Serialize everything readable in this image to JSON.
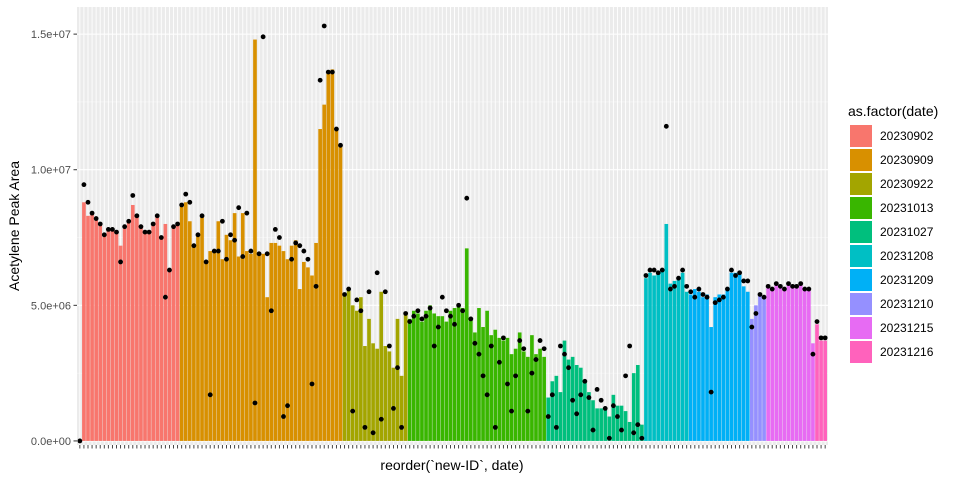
{
  "chart_data": {
    "type": "bar",
    "title": "",
    "xlabel": "reorder(`new-ID`, date)",
    "ylabel": "Acetylene Peak Area",
    "ylim": [
      -150000,
      16000000
    ],
    "yticks": [
      0,
      5000000,
      10000000,
      15000000
    ],
    "ytick_labels": [
      "0.0e+00",
      "5.0e+06",
      "1.0e+07",
      "1.5e+07"
    ],
    "legend": {
      "title": "as.factor(date)",
      "placement": "right",
      "entries": [
        {
          "label": "20230902",
          "color": "#F8766D"
        },
        {
          "label": "20230909",
          "color": "#D89000"
        },
        {
          "label": "20230922",
          "color": "#A3A500"
        },
        {
          "label": "20231013",
          "color": "#39B600"
        },
        {
          "label": "20231027",
          "color": "#00BF7D"
        },
        {
          "label": "20231208",
          "color": "#00BFC4"
        },
        {
          "label": "20231209",
          "color": "#00B0F6"
        },
        {
          "label": "20231210",
          "color": "#9590FF"
        },
        {
          "label": "20231215",
          "color": "#E76BF3"
        },
        {
          "label": "20231216",
          "color": "#FF62BC"
        }
      ]
    },
    "series": [
      {
        "name": "20230902",
        "bar_values": [
          0,
          8800000,
          8300000,
          8400000,
          8200000,
          8000000,
          7600000,
          7800000,
          7800000,
          7700000,
          7200000,
          7900000,
          8100000,
          8700000,
          8300000,
          7900000,
          7700000,
          7700000,
          8000000,
          8300000,
          7500000,
          8000000,
          6300000,
          7900000,
          8000000
        ],
        "points": [
          0,
          9450000,
          8800000,
          8400000,
          8200000,
          8000000,
          7600000,
          7800000,
          7800000,
          7700000,
          6600000,
          7900000,
          8100000,
          9050000,
          8300000,
          7900000,
          7700000,
          7700000,
          8000000,
          8300000,
          7500000,
          5300000,
          6300000,
          7900000,
          8000000
        ]
      },
      {
        "name": "20230909",
        "bar_values": [
          8700000,
          8800000,
          8100000,
          7200000,
          7600000,
          8300000,
          6600000,
          7000000,
          7000000,
          8100000,
          6700000,
          7600000,
          7400000,
          8400000,
          6800000,
          8400000,
          7000000,
          6900000,
          14800000,
          6900000,
          6900000,
          5300000,
          7300000,
          7300000,
          7200000,
          7000000,
          6700000,
          7200000,
          7400000,
          5600000,
          6600000,
          6400000,
          6100000,
          7300000,
          11500000,
          12400000,
          13600000,
          13700000,
          11500000,
          10900000
        ],
        "points": [
          8700000,
          9100000,
          8800000,
          7200000,
          7600000,
          8300000,
          6600000,
          1700000,
          7000000,
          7000000,
          8100000,
          6700000,
          7600000,
          7400000,
          8600000,
          6800000,
          8400000,
          7000000,
          1400000,
          6900000,
          14900000,
          6900000,
          4800000,
          7800000,
          7500000,
          900000,
          1300000,
          6700000,
          7300000,
          7200000,
          7000000,
          6700000,
          2100000,
          5700000,
          13300000,
          15300000,
          13600000,
          13600000,
          11500000,
          10900000
        ]
      },
      {
        "name": "20230922",
        "bar_values": [
          5400000,
          5600000,
          5000000,
          4800000,
          5300000,
          3500000,
          4500000,
          3600000,
          3400000,
          5500000,
          3500000,
          3300000,
          2700000,
          4500000,
          2400000,
          4700000
        ],
        "points": [
          5400000,
          5600000,
          1100000,
          5200000,
          4800000,
          500000,
          5500000,
          300000,
          6200000,
          800000,
          5500000,
          3500000,
          1200000,
          2700000,
          500000,
          4700000
        ]
      },
      {
        "name": "20231013",
        "bar_values": [
          4500000,
          4800000,
          4700000,
          4400000,
          4800000,
          5000000,
          4700000,
          4600000,
          4600000,
          4400000,
          4800000,
          4900000,
          5000000,
          4900000,
          7100000,
          4500000,
          4000000,
          4900000,
          4200000,
          4800000,
          3900000,
          4100000,
          3800000,
          3700000,
          3800000,
          3200000,
          3400000,
          4000000,
          3300000,
          3100000,
          3900000,
          3200000,
          3400000,
          3100000
        ],
        "points": [
          4400000,
          4600000,
          4800000,
          4500000,
          4600000,
          4900000,
          3500000,
          4200000,
          5300000,
          4800000,
          4600000,
          4300000,
          5000000,
          4800000,
          8950000,
          4500000,
          3600000,
          3200000,
          2400000,
          1700000,
          3500000,
          500000,
          2900000,
          3800000,
          2100000,
          1100000,
          2400000,
          3700000,
          3400000,
          1100000,
          2500000,
          3000000,
          3700000,
          3400000
        ]
      },
      {
        "name": "20231027",
        "bar_values": [
          1600000,
          2200000,
          2400000,
          1800000,
          3700000,
          3000000,
          3100000,
          2800000,
          2700000,
          2200000,
          1800000,
          1500000,
          1200000,
          1200000,
          1200000,
          900000,
          1700000,
          1300000,
          1300000,
          1100000,
          700000,
          2500000,
          2800000,
          600000
        ],
        "points": [
          900000,
          1700000,
          500000,
          3500000,
          3200000,
          2700000,
          1500000,
          1000000,
          1700000,
          2200000,
          1600000,
          400000,
          1900000,
          1500000,
          1200000,
          100000,
          1300000,
          900000,
          400000,
          2400000,
          3500000,
          300000,
          600000,
          100000
        ]
      },
      {
        "name": "20231208",
        "bar_values": [
          6000000,
          6200000,
          6100000,
          6200000,
          6300000,
          8000000,
          5800000,
          5900000,
          6000000,
          6200000,
          5500000
        ],
        "points": [
          6100000,
          6300000,
          6300000,
          6200000,
          6300000,
          11600000,
          5600000,
          5700000,
          6000000,
          6300000,
          5700000
        ]
      },
      {
        "name": "20231209",
        "bar_values": [
          5400000,
          5600000,
          5500000,
          5300000,
          5400000,
          4200000,
          5300000,
          5400000,
          5400000,
          5600000,
          6200000,
          6200000,
          6200000,
          5700000,
          5500000
        ],
        "points": [
          5500000,
          5300000,
          5600000,
          5400000,
          5300000,
          1800000,
          5100000,
          5200000,
          5300000,
          5600000,
          6300000,
          6100000,
          6200000,
          5900000,
          5900000
        ]
      },
      {
        "name": "20231210",
        "bar_values": [
          4500000,
          5000000,
          5400000,
          5300000
        ],
        "points": [
          4200000,
          4700000,
          5400000,
          5300000
        ]
      },
      {
        "name": "20231215",
        "bar_values": [
          5700000,
          5600000,
          5800000,
          5700000,
          5600000,
          5800000,
          5700000,
          5700000,
          5800000,
          5600000,
          5600000,
          3600000
        ],
        "points": [
          5700000,
          5600000,
          5800000,
          5700000,
          5600000,
          5800000,
          5700000,
          5700000,
          5800000,
          5600000,
          5600000,
          3200000
        ]
      },
      {
        "name": "20231216",
        "bar_values": [
          4300000,
          3700000,
          3700000
        ],
        "points": [
          4400000,
          3800000,
          3800000
        ]
      }
    ]
  }
}
